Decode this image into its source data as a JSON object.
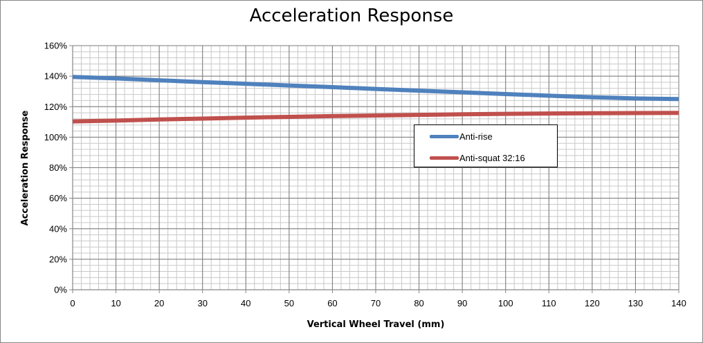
{
  "chart_data": {
    "type": "line",
    "title": "Acceleration Response",
    "xlabel": "Vertical Wheel Travel (mm)",
    "ylabel": "Acceleration Response",
    "xlim": [
      0,
      140
    ],
    "ylim": [
      0,
      160
    ],
    "x_ticks": [
      0,
      10,
      20,
      30,
      40,
      50,
      60,
      70,
      80,
      90,
      100,
      110,
      120,
      130,
      140
    ],
    "x_tick_labels": [
      "0",
      "10",
      "20",
      "30",
      "40",
      "50",
      "60",
      "70",
      "80",
      "90",
      "100",
      "110",
      "120",
      "130",
      "140"
    ],
    "y_ticks": [
      0,
      20,
      40,
      60,
      80,
      100,
      120,
      140,
      160
    ],
    "y_tick_labels": [
      "0%",
      "20%",
      "40%",
      "60%",
      "80%",
      "100%",
      "120%",
      "140%",
      "160%"
    ],
    "grid": true,
    "legend_position": "center-right",
    "series": [
      {
        "name": "Anti-rise",
        "color": "#4F81BD",
        "x": [
          0,
          10,
          20,
          30,
          40,
          50,
          60,
          70,
          80,
          90,
          100,
          110,
          120,
          130,
          140
        ],
        "y": [
          139.5,
          138.5,
          137.3,
          136.1,
          135.0,
          133.9,
          132.8,
          131.6,
          130.5,
          129.4,
          128.3,
          127.2,
          126.2,
          125.4,
          125.0
        ]
      },
      {
        "name": "Anti-squat 32:16",
        "color": "#C0504D",
        "x": [
          0,
          10,
          20,
          30,
          40,
          50,
          60,
          70,
          80,
          90,
          100,
          110,
          120,
          130,
          140
        ],
        "y": [
          110.3,
          110.9,
          111.6,
          112.2,
          112.8,
          113.3,
          113.8,
          114.2,
          114.6,
          115.0,
          115.3,
          115.5,
          115.7,
          115.8,
          115.9
        ]
      }
    ]
  }
}
